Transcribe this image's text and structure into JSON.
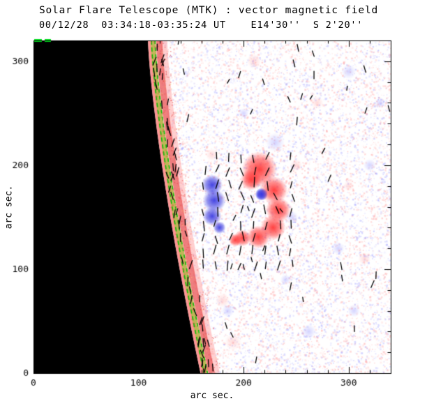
{
  "chart_data": {
    "type": "heatmap",
    "title": "Solar Flare Telescope (MTK) : vector magnetic field",
    "subtitle": "00/12/28  03:34:18-03:35:24 UT    E14'30''  S 2'20''",
    "xlabel": "arc sec.",
    "ylabel": "arc sec.",
    "xlim": [
      0,
      340
    ],
    "ylim": [
      0,
      320
    ],
    "xticks": [
      0,
      100,
      200,
      300
    ],
    "yticks": [
      0,
      100,
      200,
      300
    ],
    "minor_tick_step": 20,
    "seed": 20001228,
    "noise": {
      "count": 17000,
      "pink_fraction": 0.56
    },
    "palette": {
      "pink": "#ff9a9a",
      "blue": "#9a9aff",
      "red_core": "255,55,55",
      "blue_core": "60,60,225",
      "faint_blue": "120,120,255",
      "faint_pink": "255,130,130",
      "limb_yellow": "rgba(186,178,78,0.95)",
      "limb_green": "rgba(0,185,0,0.9)",
      "limb_red": "rgba(235,95,95,0.8)",
      "limb_pink_outer": "rgba(255,150,150,0.45)",
      "limb_pink_inner": "rgba(255,140,140,0.9)",
      "corner_green": "rgb(0,220,30)",
      "black": "#000000"
    },
    "limb": {
      "x_top": 109,
      "x_bottom": 159,
      "curve_exp": 1.35
    },
    "red_blobs": [
      [
        215,
        196,
        17
      ],
      [
        207,
        186,
        10
      ],
      [
        229,
        176,
        13
      ],
      [
        233,
        157,
        12
      ],
      [
        228,
        140,
        12
      ],
      [
        214,
        131,
        11
      ],
      [
        199,
        130,
        8
      ],
      [
        192,
        128,
        6
      ]
    ],
    "blue_blobs": [
      [
        170,
        181,
        10
      ],
      [
        172,
        166,
        11
      ],
      [
        170,
        151,
        9
      ],
      [
        177,
        140,
        6
      ],
      [
        217,
        172,
        6
      ]
    ],
    "faint_blue_patches": [
      [
        230,
        222,
        9
      ],
      [
        246,
        150,
        6
      ],
      [
        262,
        40,
        7
      ],
      [
        300,
        290,
        7
      ],
      [
        200,
        250,
        5
      ],
      [
        290,
        120,
        6
      ],
      [
        320,
        200,
        6
      ],
      [
        185,
        60,
        6
      ],
      [
        240,
        90,
        5
      ],
      [
        305,
        60,
        6
      ],
      [
        330,
        260,
        5
      ]
    ],
    "faint_pink_patches": [
      [
        190,
        30,
        8
      ],
      [
        180,
        70,
        7
      ],
      [
        250,
        200,
        6
      ],
      [
        270,
        260,
        6
      ],
      [
        210,
        300,
        7
      ],
      [
        300,
        180,
        5
      ],
      [
        170,
        210,
        6
      ],
      [
        315,
        110,
        6
      ]
    ],
    "vector_field": {
      "grid_x": [
        162,
        252,
        12
      ],
      "grid_y": [
        104,
        214,
        13
      ],
      "scatter_count": 70,
      "limb_count": 60
    }
  }
}
